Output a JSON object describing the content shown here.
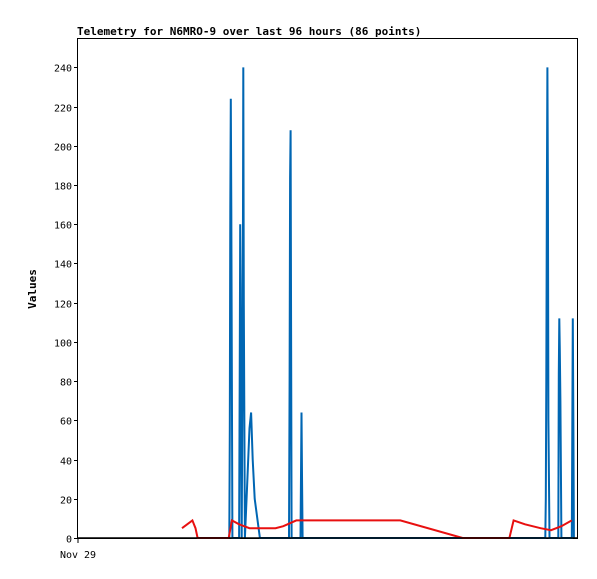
{
  "chart_data": {
    "type": "line",
    "title": "Telemetry for N6MRO-9 over last 96 hours (86 points)",
    "xlabel": "",
    "ylabel": "Values",
    "x_tick_labels": [
      "Nov 29"
    ],
    "ylim": [
      0,
      255
    ],
    "y_ticks": [
      0,
      20,
      40,
      60,
      80,
      100,
      120,
      140,
      160,
      180,
      200,
      220,
      240
    ],
    "x_range_hours": [
      0,
      96
    ],
    "grid": false,
    "legend": "none",
    "colors": {
      "series_blue": "#0066b3",
      "series_red": "#e81010",
      "series_black": "#000000",
      "background": "#ffffff",
      "frame": "#000000"
    },
    "series": [
      {
        "color_key": "series_blue",
        "points": [
          [
            29.1,
            0
          ],
          [
            29.2,
            56
          ],
          [
            29.3,
            168
          ],
          [
            29.4,
            224
          ],
          [
            29.5,
            168
          ],
          [
            29.7,
            0
          ],
          [
            31.0,
            0
          ],
          [
            31.1,
            80
          ],
          [
            31.2,
            160
          ],
          [
            31.3,
            128
          ],
          [
            31.4,
            48
          ],
          [
            31.5,
            0
          ],
          [
            31.7,
            120
          ],
          [
            31.8,
            240
          ],
          [
            31.9,
            120
          ],
          [
            32.1,
            0
          ],
          [
            32.5,
            24
          ],
          [
            33.0,
            56
          ],
          [
            33.3,
            64
          ],
          [
            33.6,
            40
          ],
          [
            34.0,
            20
          ],
          [
            35.0,
            0
          ],
          [
            40.6,
            0
          ],
          [
            40.7,
            80
          ],
          [
            40.8,
            184
          ],
          [
            40.9,
            208
          ],
          [
            41.0,
            104
          ],
          [
            41.1,
            0
          ],
          [
            42.8,
            0
          ],
          [
            42.9,
            32
          ],
          [
            43.0,
            64
          ],
          [
            43.1,
            32
          ],
          [
            43.2,
            0
          ],
          [
            89.9,
            0
          ],
          [
            90.0,
            20
          ],
          [
            90.1,
            80
          ],
          [
            90.2,
            180
          ],
          [
            90.3,
            240
          ],
          [
            90.4,
            180
          ],
          [
            90.5,
            60
          ],
          [
            90.7,
            0
          ],
          [
            92.4,
            0
          ],
          [
            92.5,
            84
          ],
          [
            92.6,
            112
          ],
          [
            92.7,
            96
          ],
          [
            92.8,
            70
          ],
          [
            93.0,
            0
          ],
          [
            95.0,
            0
          ],
          [
            95.1,
            56
          ],
          [
            95.2,
            112
          ],
          [
            95.3,
            56
          ],
          [
            95.4,
            0
          ]
        ]
      },
      {
        "color_key": "series_red",
        "points": [
          [
            20.0,
            5
          ],
          [
            21.0,
            7
          ],
          [
            22.0,
            9
          ],
          [
            22.6,
            5
          ],
          [
            23.0,
            0
          ],
          [
            29.0,
            0
          ],
          [
            29.6,
            9
          ],
          [
            31.0,
            7
          ],
          [
            33.0,
            5
          ],
          [
            38.0,
            5
          ],
          [
            39.5,
            6
          ],
          [
            42.0,
            9
          ],
          [
            62.0,
            9
          ],
          [
            74.0,
            0
          ],
          [
            83.0,
            0
          ],
          [
            83.8,
            9
          ],
          [
            86.0,
            7
          ],
          [
            89.0,
            5
          ],
          [
            91.0,
            4
          ],
          [
            93.0,
            6
          ],
          [
            95.0,
            9
          ]
        ]
      },
      {
        "color_key": "series_black",
        "points": [
          [
            0,
            0
          ],
          [
            96,
            0
          ]
        ]
      }
    ]
  }
}
